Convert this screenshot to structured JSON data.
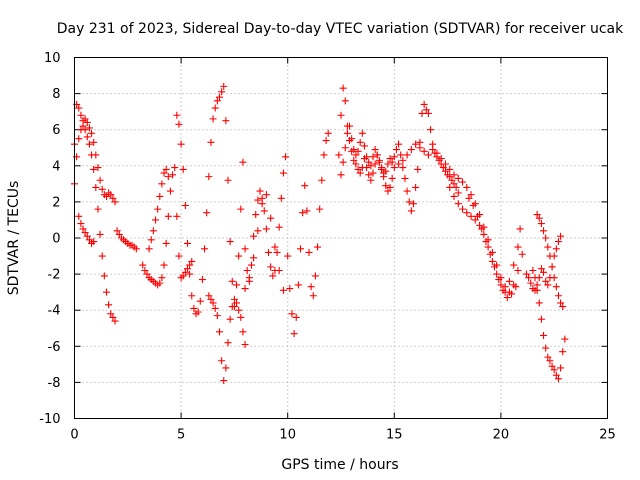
{
  "chart_data": {
    "type": "scatter",
    "title": "Day 231 of 2023, Sidereal Day-to-day VTEC variation (SDTVAR) for receiver ucak",
    "xlabel": "GPS time / hours",
    "ylabel": "SDTVAR / TECUs",
    "xlim": [
      0,
      25
    ],
    "ylim": [
      -10,
      10
    ],
    "xticks": [
      "0",
      "5",
      "10",
      "15",
      "20",
      "25"
    ],
    "yticks": [
      "10",
      "8",
      "6",
      "4",
      "2",
      "0",
      "-2",
      "-4",
      "-6",
      "-8",
      "-10"
    ],
    "grid": true,
    "marker": "plus",
    "color": "#ff0000",
    "series": [
      {
        "name": "SDTVAR",
        "x": [
          0.0,
          0.1,
          0.2,
          0.3,
          0.4,
          0.5,
          0.6,
          0.7,
          0.8,
          0.9,
          1.0,
          1.1,
          1.2,
          1.3,
          1.4,
          1.5,
          1.6,
          1.7,
          1.8,
          1.9,
          2.0,
          2.1,
          2.2,
          2.3,
          2.4,
          2.5,
          2.6,
          2.7,
          2.8,
          2.9
        ],
        "y": [
          5.2,
          7.4,
          7.2,
          6.8,
          6.5,
          6.6,
          6.4,
          6.1,
          5.8,
          5.3,
          4.6,
          3.9,
          3.2,
          2.7,
          2.4,
          2.3,
          2.5,
          2.4,
          2.2,
          2.0,
          0.4,
          0.2,
          0.0,
          -0.1,
          -0.2,
          -0.3,
          -0.4,
          -0.4,
          -0.5,
          -0.6
        ]
      },
      {
        "name": "SDTVAR",
        "x": [
          0.0,
          0.1,
          0.2,
          0.3,
          0.4,
          0.5,
          0.6,
          0.7,
          0.8,
          0.9,
          1.0,
          1.1,
          1.2,
          1.3,
          1.4,
          1.5,
          1.6,
          1.7,
          1.8,
          1.9
        ],
        "y": [
          3.0,
          4.5,
          5.5,
          6.0,
          6.2,
          6.0,
          5.6,
          5.2,
          4.6,
          3.8,
          2.8,
          1.6,
          0.2,
          -1.0,
          -2.1,
          -3.0,
          -3.7,
          -4.2,
          -4.4,
          -4.6
        ]
      },
      {
        "name": "SDTVAR",
        "x": [
          0.2,
          0.3,
          0.4,
          0.5,
          0.6,
          0.7,
          0.8,
          0.9
        ],
        "y": [
          1.2,
          0.8,
          0.5,
          0.3,
          0.1,
          -0.1,
          -0.3,
          -0.2
        ]
      },
      {
        "name": "SDTVAR",
        "x": [
          3.2,
          3.3,
          3.4,
          3.5,
          3.6,
          3.7,
          3.8,
          3.9,
          4.0,
          4.1,
          4.2,
          4.3,
          4.4,
          4.5,
          4.6,
          4.7,
          4.8,
          4.9,
          5.0,
          5.1,
          5.2,
          5.3,
          5.4,
          5.5
        ],
        "y": [
          -1.5,
          -1.8,
          -2.0,
          -2.2,
          -2.3,
          -2.4,
          -2.5,
          -2.6,
          -2.5,
          -2.2,
          -1.5,
          -0.3,
          1.2,
          2.6,
          3.5,
          3.9,
          1.2,
          -1.0,
          -2.2,
          -2.1,
          -1.9,
          -1.7,
          -1.5,
          -1.3
        ]
      },
      {
        "name": "SDTVAR",
        "x": [
          3.5,
          3.6,
          3.7,
          3.8,
          3.9,
          4.0,
          4.1,
          4.2,
          4.3,
          4.4
        ],
        "y": [
          -0.6,
          -0.1,
          0.4,
          1.0,
          1.6,
          2.3,
          3.0,
          3.6,
          3.8,
          3.4
        ]
      },
      {
        "name": "SDTVAR",
        "x": [
          4.8,
          4.9,
          5.0,
          5.1,
          5.2,
          5.3,
          5.4,
          5.5,
          5.6,
          5.7,
          5.8,
          5.9,
          6.0,
          6.1,
          6.2,
          6.3,
          6.4,
          6.5,
          6.6,
          6.7,
          6.8,
          6.9,
          7.0,
          7.1,
          7.2,
          7.3,
          7.4,
          7.5,
          7.6,
          7.7,
          7.8,
          7.9
        ],
        "y": [
          6.8,
          6.3,
          5.2,
          3.8,
          1.8,
          -0.3,
          -2.0,
          -3.2,
          -3.9,
          -4.2,
          -4.1,
          -3.5,
          -2.3,
          -0.6,
          1.4,
          3.4,
          5.3,
          6.6,
          7.2,
          7.6,
          7.8,
          8.1,
          8.4,
          6.5,
          3.2,
          -0.2,
          -2.4,
          -3.8,
          -2.6,
          -1.0,
          1.6,
          4.2
        ]
      },
      {
        "name": "SDTVAR",
        "x": [
          6.3,
          6.4,
          6.5,
          6.6,
          6.7,
          6.8,
          6.9,
          7.0,
          7.1,
          7.2,
          7.3,
          7.4,
          7.5,
          7.6,
          7.7,
          7.8,
          7.9,
          8.0
        ],
        "y": [
          -3.2,
          -3.4,
          -3.6,
          -3.9,
          -4.3,
          -5.2,
          -6.8,
          -7.9,
          -7.2,
          -5.8,
          -4.5,
          -3.8,
          -3.4,
          -3.6,
          -4.0,
          -4.4,
          -5.2,
          -5.9
        ]
      },
      {
        "name": "SDTVAR",
        "x": [
          8.0,
          8.1,
          8.2,
          8.3,
          8.4,
          8.5,
          8.6,
          8.7,
          8.8,
          8.9,
          9.0,
          9.1,
          9.2,
          9.3,
          9.4,
          9.5,
          9.6,
          9.7,
          9.8,
          9.9
        ],
        "y": [
          -0.6,
          -1.8,
          -2.4,
          -1.5,
          0.1,
          1.3,
          2.1,
          2.6,
          2.2,
          1.5,
          0.5,
          -0.8,
          -1.6,
          -2.1,
          -1.8,
          -0.8,
          0.6,
          2.2,
          3.6,
          4.5
        ]
      },
      {
        "name": "SDTVAR",
        "x": [
          8.0,
          8.2,
          8.4,
          8.6,
          8.8,
          9.0,
          9.2,
          9.4,
          9.6,
          9.8
        ],
        "y": [
          -2.8,
          -2.2,
          -1.1,
          0.4,
          1.9,
          2.4,
          1.1,
          -0.5,
          -1.8,
          -2.9
        ]
      },
      {
        "name": "SDTVAR",
        "x": [
          10.0,
          10.1,
          10.2,
          10.3,
          10.4,
          10.5,
          10.6,
          10.7,
          10.8,
          10.9,
          11.0,
          11.1,
          11.2,
          11.3,
          11.4,
          11.5,
          11.6,
          11.7,
          11.8,
          11.9
        ],
        "y": [
          -1.0,
          -2.8,
          -4.2,
          -5.3,
          -4.4,
          -2.6,
          -0.6,
          1.4,
          2.9,
          1.5,
          -0.8,
          -2.7,
          -3.2,
          -2.1,
          -0.5,
          1.6,
          3.2,
          4.6,
          5.4,
          5.8
        ]
      },
      {
        "name": "SDTVAR",
        "x": [
          12.4,
          12.5,
          12.6,
          12.7,
          12.8,
          12.9,
          13.0,
          13.1,
          13.2,
          13.3,
          13.4,
          13.5,
          13.6,
          13.7,
          13.8,
          13.9,
          14.0,
          14.1,
          14.2,
          14.3,
          14.4,
          14.5,
          14.6,
          14.7,
          14.8,
          14.9,
          15.0
        ],
        "y": [
          4.6,
          6.8,
          8.3,
          7.6,
          6.2,
          5.4,
          4.8,
          4.3,
          4.1,
          3.8,
          3.6,
          3.9,
          4.4,
          3.9,
          3.5,
          3.2,
          3.6,
          4.1,
          4.6,
          4.3,
          3.8,
          3.4,
          2.9,
          2.6,
          2.8,
          3.3,
          3.9
        ]
      },
      {
        "name": "SDTVAR",
        "x": [
          12.5,
          12.6,
          12.7,
          12.8,
          12.9,
          13.0,
          13.1,
          13.2,
          13.3,
          13.4,
          13.5,
          13.6,
          13.7,
          13.8,
          13.9,
          14.0,
          14.1,
          14.2,
          14.3,
          14.4,
          14.5,
          14.6,
          14.7,
          14.8,
          14.9
        ],
        "y": [
          3.5,
          4.2,
          5.0,
          5.8,
          6.2,
          5.5,
          4.9,
          4.6,
          4.8,
          5.3,
          5.8,
          5.1,
          4.5,
          4.2,
          4.0,
          4.5,
          4.9,
          4.6,
          4.2,
          3.9,
          3.6,
          3.7,
          4.1,
          4.4,
          4.2
        ]
      },
      {
        "name": "SDTVAR",
        "x": [
          15.0,
          15.1,
          15.2,
          15.3,
          15.4,
          15.5,
          15.6,
          15.7,
          15.8,
          15.9,
          16.0,
          16.1,
          16.2,
          16.3,
          16.4,
          16.5,
          16.6,
          16.7,
          16.8,
          16.9,
          17.0,
          17.1,
          17.2,
          17.3,
          17.4,
          17.5,
          17.6,
          17.7,
          17.8,
          17.9,
          18.0
        ],
        "y": [
          4.5,
          4.9,
          5.2,
          4.6,
          3.9,
          3.3,
          2.6,
          2.0,
          1.5,
          1.9,
          2.8,
          3.8,
          5.3,
          6.9,
          7.4,
          7.1,
          6.9,
          6.0,
          5.2,
          4.7,
          4.5,
          4.3,
          4.1,
          3.9,
          3.7,
          3.5,
          3.4,
          3.2,
          3.0,
          2.8,
          2.5
        ]
      },
      {
        "name": "SDTVAR",
        "x": [
          15.2,
          15.4,
          15.6,
          15.8,
          16.0,
          16.2,
          16.4,
          16.6,
          16.8,
          17.0,
          17.2,
          17.4,
          17.6,
          17.8,
          18.0,
          18.2,
          18.4,
          18.6,
          18.8,
          19.0,
          19.2,
          19.4,
          19.6,
          19.8,
          20.0,
          20.2,
          20.4,
          20.6,
          20.8,
          21.0
        ],
        "y": [
          4.1,
          4.3,
          4.6,
          4.9,
          5.2,
          5.0,
          4.8,
          4.6,
          4.9,
          4.7,
          4.4,
          4.1,
          3.8,
          3.5,
          3.3,
          3.1,
          2.8,
          2.4,
          1.9,
          1.3,
          0.6,
          -0.1,
          -0.8,
          -1.5,
          -2.2,
          -2.7,
          -3.0,
          -2.6,
          -1.8,
          -0.9
        ]
      },
      {
        "name": "SDTVAR",
        "x": [
          17.6,
          17.8,
          18.0,
          18.2,
          18.4,
          18.6,
          18.8,
          19.0,
          19.2,
          19.4,
          19.6,
          19.8,
          20.0,
          20.2,
          20.4,
          20.6,
          20.8
        ],
        "y": [
          2.8,
          2.3,
          1.9,
          1.6,
          1.4,
          1.2,
          1.0,
          0.7,
          0.2,
          -0.5,
          -1.3,
          -2.0,
          -2.6,
          -3.0,
          -2.4,
          -1.5,
          -0.5
        ]
      },
      {
        "name": "SDTVAR",
        "x": [
          18.5,
          18.7,
          18.9,
          19.1,
          19.3,
          19.5,
          19.7,
          19.9,
          20.1,
          20.3,
          20.5,
          20.7,
          20.9
        ],
        "y": [
          2.2,
          1.8,
          1.2,
          0.5,
          -0.2,
          -0.9,
          -1.6,
          -2.3,
          -2.9,
          -3.3,
          -3.1,
          -2.7,
          0.5
        ]
      },
      {
        "name": "SDTVAR",
        "x": [
          21.5,
          21.6,
          21.7,
          21.8,
          21.9,
          22.0,
          22.1,
          22.2,
          22.3,
          22.4,
          22.5,
          22.6,
          22.7,
          22.8,
          22.9,
          23.0
        ],
        "y": [
          -1.8,
          -2.2,
          -2.9,
          -3.6,
          -4.5,
          -5.4,
          -6.1,
          -6.6,
          -6.8,
          -7.1,
          -7.3,
          -7.6,
          -7.8,
          -7.2,
          -6.3,
          -5.6
        ]
      },
      {
        "name": "SDTVAR",
        "x": [
          21.7,
          21.8,
          21.9,
          22.0,
          22.1,
          22.2,
          22.3,
          22.4,
          22.5,
          22.6,
          22.7,
          22.8,
          22.9
        ],
        "y": [
          1.3,
          1.1,
          0.8,
          0.4,
          0.0,
          -0.5,
          -1.0,
          -1.6,
          -2.2,
          -2.7,
          -3.2,
          -3.6,
          -3.8
        ]
      },
      {
        "name": "SDTVAR",
        "x": [
          21.2,
          21.3,
          21.4,
          21.5,
          21.6,
          21.7,
          21.8,
          21.9,
          22.0,
          22.1,
          22.2,
          22.3,
          22.4,
          22.5,
          22.6,
          22.7,
          22.8
        ],
        "y": [
          -2.0,
          -2.2,
          -2.5,
          -2.8,
          -2.9,
          -2.6,
          -2.2,
          -1.7,
          -1.9,
          -2.4,
          -2.6,
          -2.2,
          -1.6,
          -1.0,
          -0.6,
          -0.2,
          0.1
        ]
      }
    ]
  }
}
